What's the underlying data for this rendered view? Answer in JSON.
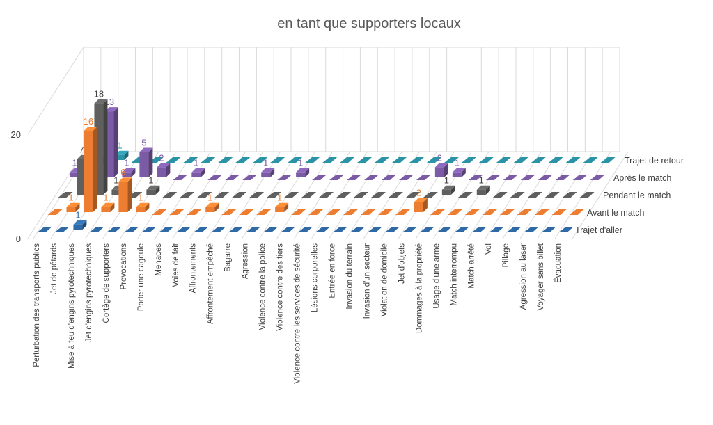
{
  "chart_data": {
    "type": "bar",
    "subtype": "3d-column",
    "title": "en tant que supporters locaux",
    "xlabel": "",
    "ylabel": "",
    "yticks": [
      0,
      20
    ],
    "ylim": [
      0,
      20
    ],
    "grid": true,
    "legend": "depth-axis-right",
    "categories": [
      "Perturbation des transports publics",
      "Jet de pétards",
      "Mise à feu d'engins pyrotechniques",
      "Jet d'engins pyrotechniques",
      "Cortège de supporters",
      "Provocations",
      "Porter une cagoule",
      "Menaces",
      "Voies de fait",
      "Affrontements",
      "Affrontement empêché",
      "Bagarre",
      "Agression",
      "Violence contre la police",
      "Violence contre des tiers",
      "Violence contre les services de sécurité",
      "Lésions corporelles",
      "Entrée en force",
      "Invasion du terrain",
      "Invasion d'un secteur",
      "Violation de domicile",
      "Jet d'objets",
      "Dommages à la propriété",
      "Usage d'une arme",
      "Match interrompu",
      "Match arrêté",
      "Vol",
      "Pillage",
      "Agression au laser",
      "Voyager sans billet",
      "Évacuation"
    ],
    "series": [
      {
        "name": "Trajet d'aller",
        "color": "#2f6aa6",
        "values": [
          0,
          0,
          1,
          0,
          0,
          0,
          0,
          0,
          0,
          0,
          0,
          0,
          0,
          0,
          0,
          0,
          0,
          0,
          0,
          0,
          0,
          0,
          0,
          0,
          0,
          0,
          0,
          0,
          0,
          0,
          0
        ]
      },
      {
        "name": "Avant le match",
        "color": "#ed7d31",
        "values": [
          0,
          1,
          16,
          1,
          6,
          1,
          0,
          0,
          0,
          1,
          0,
          0,
          0,
          1,
          0,
          0,
          0,
          0,
          0,
          0,
          0,
          2,
          0,
          0,
          0,
          0,
          0,
          0,
          0,
          0,
          0
        ]
      },
      {
        "name": "Pendant le match",
        "color": "#5f5f5f",
        "values": [
          0,
          7,
          18,
          1,
          0,
          1,
          0,
          0,
          0,
          0,
          0,
          0,
          0,
          0,
          0,
          0,
          0,
          0,
          0,
          0,
          0,
          0,
          1,
          0,
          1,
          0,
          0,
          0,
          0,
          0,
          0
        ]
      },
      {
        "name": "Après le match",
        "color": "#7c5ba6",
        "values": [
          1,
          3,
          13,
          1,
          5,
          2,
          0,
          1,
          0,
          0,
          0,
          1,
          0,
          1,
          0,
          0,
          0,
          0,
          0,
          0,
          0,
          2,
          1,
          0,
          0,
          0,
          0,
          0,
          0,
          0,
          0
        ]
      },
      {
        "name": "Trajet de retour",
        "color": "#2a93a6",
        "values": [
          0,
          0,
          1,
          0,
          0,
          0,
          0,
          0,
          0,
          0,
          0,
          0,
          0,
          0,
          0,
          0,
          0,
          0,
          0,
          0,
          0,
          0,
          0,
          0,
          0,
          0,
          0,
          0,
          0,
          0,
          0
        ]
      }
    ]
  }
}
